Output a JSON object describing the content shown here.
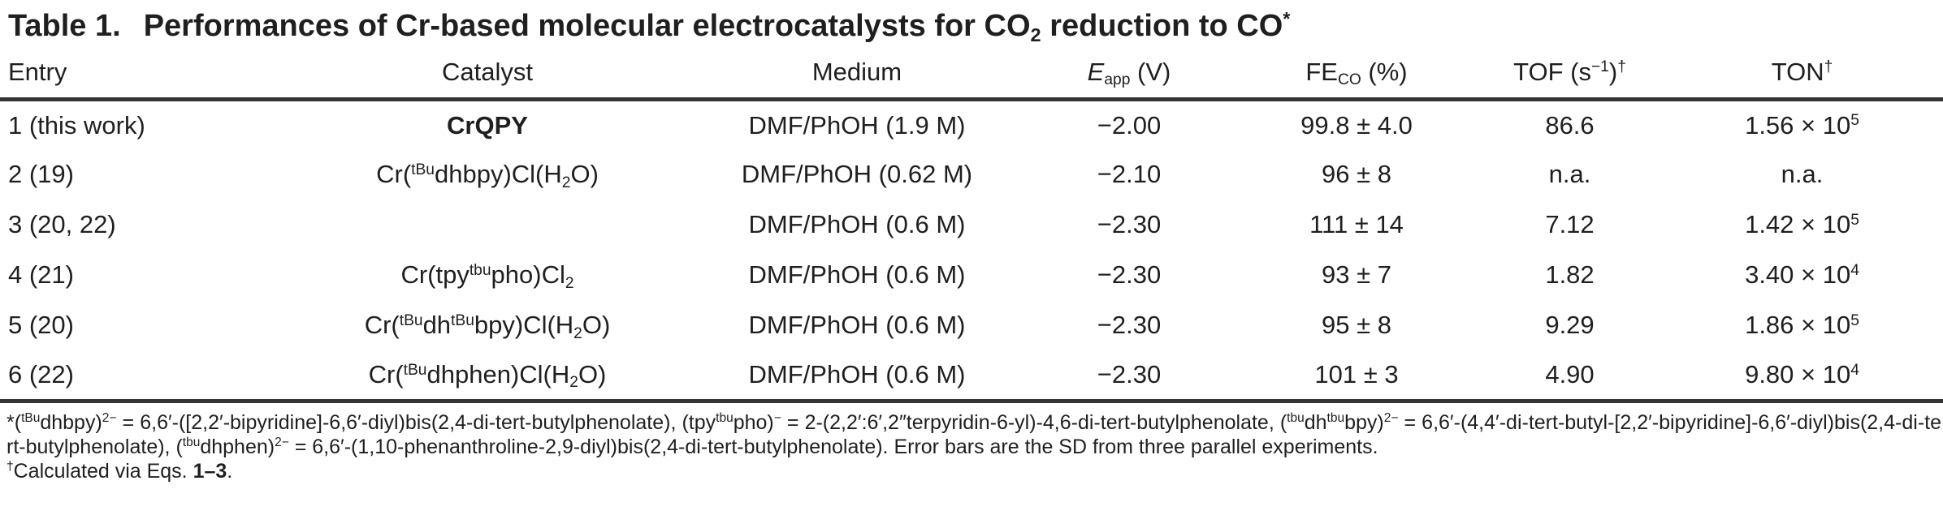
{
  "title": {
    "label": "Table 1.",
    "caption": "Performances of Cr-based molecular electrocatalysts for CO_{2} reduction to CO^{*}"
  },
  "table": {
    "columns": [
      {
        "key": "entry",
        "label": "Entry"
      },
      {
        "key": "catalyst",
        "label": "Catalyst"
      },
      {
        "key": "medium",
        "label": "Medium"
      },
      {
        "key": "eapp",
        "label": "{i}E{/i}_{app} (V)"
      },
      {
        "key": "fe",
        "label": "FE_{CO} (%)"
      },
      {
        "key": "tof",
        "label": "TOF (s^{−1})^{†}"
      },
      {
        "key": "ton",
        "label": "TON^{†}"
      }
    ],
    "rows": [
      {
        "entry": "1 (this work)",
        "catalyst": "**CrQPY**",
        "medium": "DMF/PhOH (1.9 M)",
        "eapp": "−2.00",
        "fe": "99.8 ± 4.0",
        "tof": "86.6",
        "ton": "1.56 × 10^{5}"
      },
      {
        "entry": "2 (19)",
        "catalyst": "Cr(^{tBu}dhbpy)Cl(H_{2}O)",
        "medium": "DMF/PhOH (0.62 M)",
        "eapp": "−2.10",
        "fe": "96 ± 8",
        "tof": "n.a.",
        "ton": "n.a."
      },
      {
        "entry": "3 (20, 22)",
        "catalyst": "",
        "medium": "DMF/PhOH (0.6 M)",
        "eapp": "−2.30",
        "fe": "111 ± 14",
        "tof": "7.12",
        "ton": "1.42 × 10^{5}"
      },
      {
        "entry": "4 (21)",
        "catalyst": "Cr(tpy^{tbu}pho)Cl_{2}",
        "medium": "DMF/PhOH (0.6 M)",
        "eapp": "−2.30",
        "fe": "93 ± 7",
        "tof": "1.82",
        "ton": "3.40 × 10^{4}"
      },
      {
        "entry": "5 (20)",
        "catalyst": "Cr(^{tBu}dh^{tBu}bpy)Cl(H_{2}O)",
        "medium": "DMF/PhOH (0.6 M)",
        "eapp": "−2.30",
        "fe": "95 ± 8",
        "tof": "9.29",
        "ton": "1.86 × 10^{5}"
      },
      {
        "entry": "6 (22)",
        "catalyst": "Cr(^{tBu}dhphen)Cl(H_{2}O)",
        "medium": "DMF/PhOH (0.6 M)",
        "eapp": "−2.30",
        "fe": "101 ± 3",
        "tof": "4.90",
        "ton": "9.80 × 10^{4}"
      }
    ]
  },
  "footnotes": {
    "definitions": "*(^{tBu}dhbpy)^{2−} = 6,6′-([2,2′-bipyridine]-6,6′-diyl)bis(2,4-di-tert-butylphenolate), (tpy^{tbu}pho)^{−} = 2-(2,2′:6′,2″terpyridin-6-yl)-4,6-di-tert-butylphenolate, (^{tbu}dh^{tbu}bpy)^{2−} = 6,6′-(4,4′-di-tert-butyl-[2,2′-bipyridine]-6,6′-diyl)bis(2,4-di-tert-butylphenolate), (^{tbu}dhphen)^{2−} = 6,6′-(1,10-phenanthroline-2,9-diyl)bis(2,4-di-tert-butylphenolate). Error bars are the SD from three parallel experiments.",
    "calculated": "^{†}Calculated via Eqs. **1–3**."
  },
  "colors": {
    "text": "#1f1f1f",
    "rule": "#343434",
    "background": "#ffffff"
  }
}
